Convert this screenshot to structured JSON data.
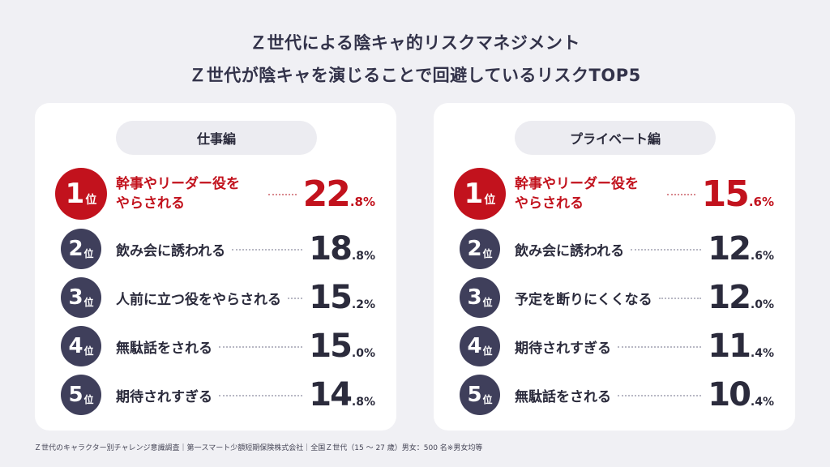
{
  "title_line1": "Ｚ世代による陰キャ的リスクマネジメント",
  "title_line2": "Ｚ世代が陰キャを演じることで回避しているリスクTOP5",
  "rank_suffix": "位",
  "source": "Ｚ世代のキャラクター別チャレンジ意識調査｜第一スマート少額短期保険株式会社｜全国Ｚ世代（15 ～ 27 歳）男女：500 名※男女均等",
  "colors": {
    "accent": "#c2121d",
    "badge": "#3f3f5b",
    "panel": "#ffffff",
    "background": "#f0f0f4"
  },
  "chart_data": [
    {
      "type": "table",
      "title": "仕事編",
      "unit": "%",
      "items": [
        {
          "rank": "1",
          "label": "幹事やリーダー役をやらされる",
          "label_lines": [
            "幹事やリーダー役を",
            "やらされる"
          ],
          "value": 22.8,
          "int": "22",
          "dec": ".8%"
        },
        {
          "rank": "2",
          "label": "飲み会に誘われる",
          "value": 18.8,
          "int": "18",
          "dec": ".8%"
        },
        {
          "rank": "3",
          "label": "人前に立つ役をやらされる",
          "value": 15.2,
          "int": "15",
          "dec": ".2%"
        },
        {
          "rank": "4",
          "label": "無駄話をされる",
          "value": 15.0,
          "int": "15",
          "dec": ".0%"
        },
        {
          "rank": "5",
          "label": "期待されすぎる",
          "value": 14.8,
          "int": "14",
          "dec": ".8%"
        }
      ]
    },
    {
      "type": "table",
      "title": "プライベート編",
      "unit": "%",
      "items": [
        {
          "rank": "1",
          "label": "幹事やリーダー役をやらされる",
          "label_lines": [
            "幹事やリーダー役を",
            "やらされる"
          ],
          "value": 15.6,
          "int": "15",
          "dec": ".6%"
        },
        {
          "rank": "2",
          "label": "飲み会に誘われる",
          "value": 12.6,
          "int": "12",
          "dec": ".6%"
        },
        {
          "rank": "3",
          "label": "予定を断りにくくなる",
          "value": 12.0,
          "int": "12",
          "dec": ".0%"
        },
        {
          "rank": "4",
          "label": "期待されすぎる",
          "value": 11.4,
          "int": "11",
          "dec": ".4%"
        },
        {
          "rank": "5",
          "label": "無駄話をされる",
          "value": 10.4,
          "int": "10",
          "dec": ".4%"
        }
      ]
    }
  ]
}
